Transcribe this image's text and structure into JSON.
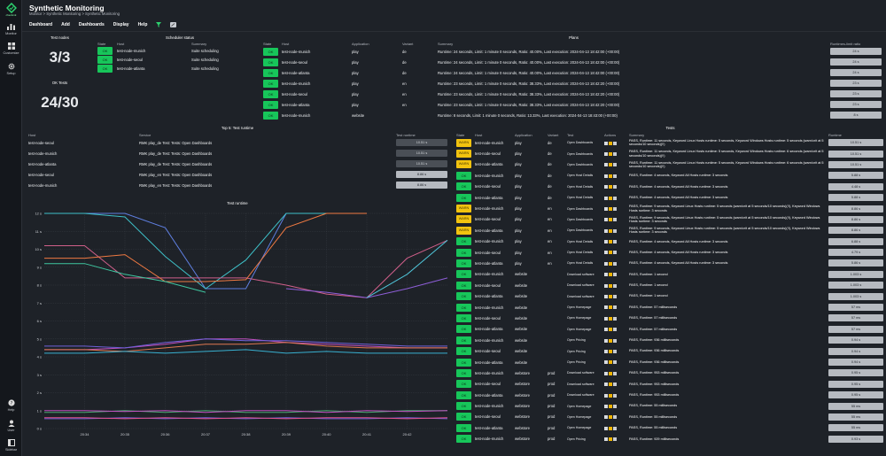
{
  "app": {
    "logo_text": "checkmk",
    "sidebar": {
      "monitor": "Monitor",
      "customize": "Customize",
      "setup": "Setup",
      "help": "Help",
      "user": "User",
      "sidebar": "Sidebar"
    }
  },
  "header": {
    "title": "Synthetic Monitoring",
    "breadcrumb": "Monitor > Synthetic Monitoring > Synthetic Monitoring",
    "menu": [
      "Dashboard",
      "Add",
      "Dashboards",
      "Display",
      "Help"
    ]
  },
  "test_nodes": {
    "title": "Test nodes",
    "value": "3/3",
    "ok_title": "OK Tests",
    "ok_value": "24/30"
  },
  "scheduler": {
    "title": "Scheduler status",
    "headers": [
      "State",
      "Host",
      "Summary"
    ],
    "rows": [
      [
        "OK",
        "test-node-munich",
        "Suite scheduling"
      ],
      [
        "OK",
        "test-node-seoul",
        "Suite scheduling"
      ],
      [
        "OK",
        "test-node-atlanta",
        "Suite scheduling"
      ]
    ]
  },
  "plans": {
    "title": "Plans",
    "headers": [
      "State",
      "Host",
      "Application",
      "Variant",
      "Summary",
      "Runtimes-limit ratio"
    ],
    "rows": [
      [
        "OK",
        "test-node-munich",
        "play",
        "de",
        "Runtime: 24 seconds, Limit: 1 minute 0 seconds, Ratio: 40.00%, Last execution: 2024-04-13 18:42:00 (+00:00)",
        "24 s"
      ],
      [
        "OK",
        "test-node-seoul",
        "play",
        "de",
        "Runtime: 24 seconds, Limit: 1 minute 0 seconds, Ratio: 40.00%, Last execution: 2024-04-13 18:42:00 (+00:00)",
        "24 s"
      ],
      [
        "OK",
        "test-node-atlanta",
        "play",
        "de",
        "Runtime: 24 seconds, Limit: 1 minute 0 seconds, Ratio: 40.00%, Last execution: 2024-04-13 18:42:00 (+00:00)",
        "24 s"
      ],
      [
        "OK",
        "test-node-munich",
        "play",
        "en",
        "Runtime: 23 seconds, Limit: 1 minute 0 seconds, Ratio: 38.33%, Last execution: 2024-04-13 18:42:20 (+00:00)",
        "23 s"
      ],
      [
        "OK",
        "test-node-seoul",
        "play",
        "en",
        "Runtime: 23 seconds, Limit: 1 minute 0 seconds, Ratio: 38.33%, Last execution: 2024-04-13 18:42:20 (+00:00)",
        "23 s"
      ],
      [
        "OK",
        "test-node-atlanta",
        "play",
        "en",
        "Runtime: 23 seconds, Limit: 1 minute 0 seconds, Ratio: 38.33%, Last execution: 2024-04-13 18:42:20 (+00:00)",
        "23 s"
      ],
      [
        "OK",
        "test-node-munich",
        "website",
        "",
        "Runtime: 8 seconds, Limit: 1 minute 0 seconds, Ratio: 13.33%, Last execution: 2024-04-13 18:43:00 (+00:00)",
        "8 s"
      ]
    ]
  },
  "top5": {
    "title": "Top 5: Test runtime",
    "headers": [
      "Host",
      "Service",
      "Test runtime"
    ],
    "rows": [
      [
        "test-node-seoul",
        "RMK play_de Test: Tests: Open Dashboards",
        "10.51 s",
        "dark"
      ],
      [
        "test-node-munich",
        "RMK play_de Test: Tests: Open Dashboards",
        "10.51 s",
        "dark"
      ],
      [
        "test-node-atlanta",
        "RMK play_de Test: Tests: Open Dashboards",
        "10.51 s",
        "dark"
      ],
      [
        "test-node-seoul",
        "RMK play_en Test: Tests: Open Dashboards",
        "8.86 s",
        "light"
      ],
      [
        "test-node-munich",
        "RMK play_en Test: Tests: Open Dashboards",
        "8.86 s",
        "light"
      ]
    ]
  },
  "chart_title": "Test runtime",
  "chart_data": {
    "type": "line",
    "title": "Test runtime",
    "x": [
      "20:33",
      "20:34",
      "20:35",
      "20:36",
      "20:37",
      "20:38",
      "20:39",
      "20:40",
      "20:41",
      "20:42",
      "20:43"
    ],
    "xticks": [
      "20:34",
      "20:35",
      "20:36",
      "20:37",
      "20:38",
      "20:39",
      "20:40",
      "20:41",
      "20:42"
    ],
    "yticks": [
      "12 s",
      "11 s",
      "10 s",
      "9 s",
      "8 s",
      "7 s",
      "6 s",
      "5 s",
      "4 s",
      "3 s",
      "2 s",
      "1 s",
      "0 s"
    ],
    "ylim": [
      0,
      12
    ],
    "series": [
      {
        "color": "#5f7fe0",
        "values": [
          12,
          12,
          12,
          11.2,
          7.8,
          7.8,
          12,
          12,
          12,
          null,
          null
        ]
      },
      {
        "color": "#3ec0c8",
        "values": [
          12,
          12,
          11.8,
          9.6,
          7.8,
          9.4,
          12,
          12,
          12,
          null,
          null
        ]
      },
      {
        "color": "#d05f8a",
        "values": [
          10.2,
          10.2,
          8.4,
          8.4,
          8.4,
          8.4,
          8.0,
          7.5,
          7.3,
          9.5,
          10.5
        ]
      },
      {
        "color": "#f07a42",
        "values": [
          9.5,
          9.5,
          9.7,
          8.2,
          8.2,
          8.3,
          11.2,
          12,
          12,
          null,
          null
        ]
      },
      {
        "color": "#3ec6a0",
        "values": [
          9.2,
          9.2,
          8.6,
          8.2,
          7.6,
          null,
          null,
          null,
          null,
          null,
          null
        ]
      },
      {
        "color": "#8e5ed8",
        "values": [
          null,
          null,
          null,
          null,
          null,
          null,
          7.8,
          7.6,
          7.3,
          7.8,
          8.4
        ]
      },
      {
        "color": "#4fc4d8",
        "values": [
          null,
          null,
          null,
          null,
          null,
          null,
          null,
          null,
          7.3,
          8.6,
          10.5
        ]
      },
      {
        "color": "#c050c0",
        "values": [
          4.4,
          4.4,
          4.5,
          4.7,
          5.0,
          5.0,
          4.8,
          4.7,
          4.6,
          4.5,
          4.5
        ]
      },
      {
        "color": "#7060d8",
        "values": [
          4.6,
          4.6,
          4.5,
          4.8,
          5.0,
          4.9,
          4.9,
          4.8,
          4.7,
          4.6,
          4.6
        ]
      },
      {
        "color": "#e07850",
        "values": [
          4.4,
          4.4,
          4.3,
          4.5,
          4.7,
          4.7,
          4.8,
          4.6,
          4.5,
          4.5,
          4.5
        ]
      },
      {
        "color": "#38b0d0",
        "values": [
          4.2,
          4.2,
          4.3,
          4.2,
          4.3,
          4.4,
          4.2,
          4.3,
          4.2,
          4.2,
          4.2
        ]
      },
      {
        "color": "#4aa870",
        "values": [
          0.9,
          0.9,
          1.0,
          0.9,
          1.0,
          0.9,
          0.9,
          1.0,
          0.9,
          1.0,
          1.0
        ]
      },
      {
        "color": "#c050c0",
        "values": [
          1.0,
          1.0,
          0.95,
          1.0,
          0.9,
          1.0,
          1.0,
          0.9,
          1.0,
          0.95,
          1.0
        ]
      },
      {
        "color": "#7060d8",
        "values": [
          0.55,
          0.55,
          0.6,
          0.55,
          0.6,
          0.55,
          0.6,
          0.55,
          0.55,
          0.6,
          0.55
        ]
      },
      {
        "color": "#e0508a",
        "values": [
          0.6,
          0.6,
          0.55,
          0.6,
          0.55,
          0.6,
          0.55,
          0.6,
          0.6,
          0.55,
          0.6
        ]
      }
    ]
  },
  "tests": {
    "title": "Tests",
    "headers": [
      "State",
      "Host",
      "Application",
      "Variant",
      "Test",
      "Actions",
      "Summary",
      "Runtime"
    ],
    "rows": [
      [
        "WARN",
        "test-node-munich",
        "play",
        "de",
        "Open Dashboards",
        "PASS, Runtime: 11 seconds, Keyword Linux Hosts runtime: 5 seconds, Keyword Windows Hosts runtime: 5 seconds (warn/crit at 5 seconds/10 seconds)(!!)",
        "10.51 s"
      ],
      [
        "WARN",
        "test-node-seoul",
        "play",
        "de",
        "Open Dashboards",
        "PASS, Runtime: 11 seconds, Keyword Linux Hosts runtime: 5 seconds, Keyword Windows Hosts runtime: 6 seconds (warn/crit at 5 seconds/10 seconds)(!!)",
        "10.51 s"
      ],
      [
        "WARN",
        "test-node-atlanta",
        "play",
        "de",
        "Open Dashboards",
        "PASS, Runtime: 11 seconds, Keyword Linux Hosts runtime: 5 seconds, Keyword Windows Hosts runtime: 6 seconds (warn/crit at 5 seconds/10 seconds)(!!)",
        "10.51 s"
      ],
      [
        "OK",
        "test-node-munich",
        "play",
        "de",
        "Open Host Details",
        "PASS, Runtime: 4 seconds, Keyword All Hosts runtime: 3 seconds",
        "5.88 s"
      ],
      [
        "OK",
        "test-node-seoul",
        "play",
        "de",
        "Open Host Details",
        "PASS, Runtime: 4 seconds, Keyword All Hosts runtime: 3 seconds",
        "4.48 s"
      ],
      [
        "OK",
        "test-node-atlanta",
        "play",
        "de",
        "Open Host Details",
        "PASS, Runtime: 4 seconds, Keyword All Hosts runtime: 3 seconds",
        "5.88 s"
      ],
      [
        "WARN",
        "test-node-munich",
        "play",
        "en",
        "Open Dashboards",
        "PASS, Runtime: 9 seconds, Keyword Linux Hosts runtime: 5 seconds (warn/crit at 5 seconds/10 seconds)(!!), Keyword Windows Hosts runtime: 3 seconds",
        "8.86 s"
      ],
      [
        "WARN",
        "test-node-seoul",
        "play",
        "en",
        "Open Dashboards",
        "PASS, Runtime: 9 seconds, Keyword Linux Hosts runtime: 5 seconds (warn/crit at 5 seconds/10 seconds)(!!), Keyword Windows Hosts runtime: 3 seconds",
        "8.86 s"
      ],
      [
        "WARN",
        "test-node-atlanta",
        "play",
        "en",
        "Open Dashboards",
        "PASS, Runtime: 9 seconds, Keyword Linux Hosts runtime: 5 seconds (warn/crit at 5 seconds/10 seconds)(!!), Keyword Windows Hosts runtime: 3 seconds",
        "8.86 s"
      ],
      [
        "OK",
        "test-node-munich",
        "play",
        "en",
        "Open Host Details",
        "PASS, Runtime: 4 seconds, Keyword All Hosts runtime: 3 seconds",
        "6.88 s"
      ],
      [
        "OK",
        "test-node-seoul",
        "play",
        "en",
        "Open Host Details",
        "PASS, Runtime: 4 seconds, Keyword All Hosts runtime: 3 seconds",
        "4.79 s"
      ],
      [
        "OK",
        "test-node-atlanta",
        "play",
        "en",
        "Open Host Details",
        "PASS, Runtime: 4 seconds, Keyword All Hosts runtime: 3 seconds",
        "5.86 s"
      ],
      [
        "OK",
        "test-node-munich",
        "website",
        "",
        "Download software",
        "PASS, Runtime: 1 second",
        "1.003 s"
      ],
      [
        "OK",
        "test-node-seoul",
        "website",
        "",
        "Download software",
        "PASS, Runtime: 1 second",
        "1.003 s"
      ],
      [
        "OK",
        "test-node-atlanta",
        "website",
        "",
        "Download software",
        "PASS, Runtime: 1 second",
        "1.003 s"
      ],
      [
        "OK",
        "test-node-munich",
        "website",
        "",
        "Open Homepage",
        "PASS, Runtime: 57 milliseconds",
        "57 ms"
      ],
      [
        "OK",
        "test-node-seoul",
        "website",
        "",
        "Open Homepage",
        "PASS, Runtime: 57 milliseconds",
        "57 ms"
      ],
      [
        "OK",
        "test-node-atlanta",
        "website",
        "",
        "Open Homepage",
        "PASS, Runtime: 57 milliseconds",
        "57 ms"
      ],
      [
        "OK",
        "test-node-munich",
        "website",
        "",
        "Open Pricing",
        "PASS, Runtime: 936 milliseconds",
        "0.94 s"
      ],
      [
        "OK",
        "test-node-seoul",
        "website",
        "",
        "Open Pricing",
        "PASS, Runtime: 936 milliseconds",
        "0.94 s"
      ],
      [
        "OK",
        "test-node-atlanta",
        "website",
        "",
        "Open Pricing",
        "PASS, Runtime: 936 milliseconds",
        "0.94 s"
      ],
      [
        "OK",
        "test-node-munich",
        "webstore",
        "prod",
        "Download software",
        "PASS, Runtime: 953 milliseconds",
        "0.95 s"
      ],
      [
        "OK",
        "test-node-seoul",
        "webstore",
        "prod",
        "Download software",
        "PASS, Runtime: 953 milliseconds",
        "0.95 s"
      ],
      [
        "OK",
        "test-node-atlanta",
        "webstore",
        "prod",
        "Download software",
        "PASS, Runtime: 953 milliseconds",
        "0.95 s"
      ],
      [
        "OK",
        "test-node-munich",
        "webstore",
        "prod",
        "Open Homepage",
        "PASS, Runtime: 55 milliseconds",
        "55 ms"
      ],
      [
        "OK",
        "test-node-seoul",
        "webstore",
        "prod",
        "Open Homepage",
        "PASS, Runtime: 55 milliseconds",
        "55 ms"
      ],
      [
        "OK",
        "test-node-atlanta",
        "webstore",
        "prod",
        "Open Homepage",
        "PASS, Runtime: 55 milliseconds",
        "55 ms"
      ],
      [
        "OK",
        "test-node-munich",
        "webstore",
        "prod",
        "Open Pricing",
        "PASS, Runtime: 929 milliseconds",
        "0.93 s"
      ]
    ]
  },
  "colors": {
    "ok": "#17c65a",
    "warn": "#f2c30f",
    "bg": "#1e2228",
    "sidebar": "#14171c"
  }
}
